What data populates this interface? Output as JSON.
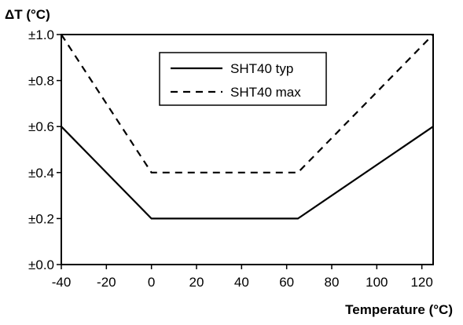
{
  "chart_data": {
    "type": "line",
    "title": "",
    "ylabel": "ΔT (°C)",
    "xlabel": "Temperature (°C)",
    "xlim": [
      -40,
      125
    ],
    "ylim": [
      0.0,
      1.0
    ],
    "x_ticks": [
      -40,
      -20,
      0,
      20,
      40,
      60,
      80,
      100,
      120
    ],
    "x_tick_labels": [
      "-40",
      "-20",
      "0",
      "20",
      "40",
      "60",
      "80",
      "100",
      "120"
    ],
    "y_ticks": [
      0.0,
      0.2,
      0.4,
      0.6,
      0.8,
      1.0
    ],
    "y_tick_labels": [
      "±0.0",
      "±0.2",
      "±0.4",
      "±0.6",
      "±0.8",
      "±1.0"
    ],
    "grid": false,
    "legend_position": "top-center",
    "series": [
      {
        "name": "SHT40 typ",
        "style": "solid",
        "color": "#000000",
        "x": [
          -40,
          0,
          65,
          125
        ],
        "y": [
          0.6,
          0.2,
          0.2,
          0.6
        ]
      },
      {
        "name": "SHT40 max",
        "style": "dashed",
        "color": "#000000",
        "x": [
          -40,
          0,
          65,
          125
        ],
        "y": [
          1.0,
          0.4,
          0.4,
          1.0
        ]
      }
    ]
  }
}
